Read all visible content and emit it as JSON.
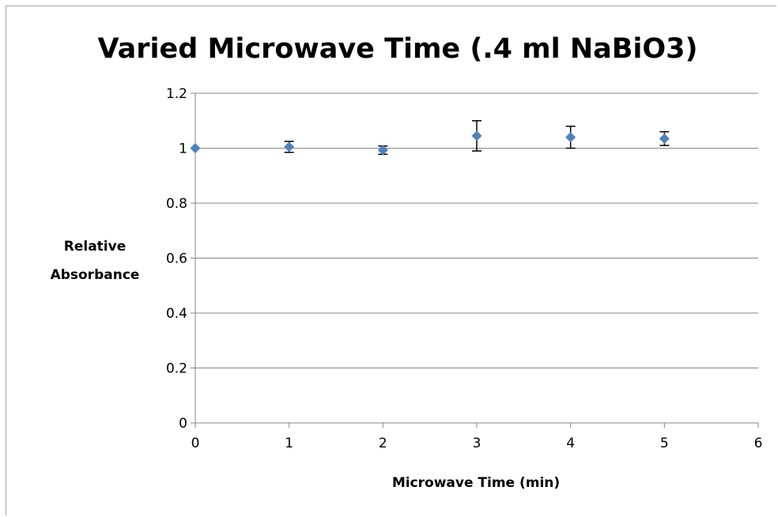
{
  "chart_data": {
    "type": "scatter",
    "title": "Varied Microwave Time (.4 ml NaBiO3)",
    "xlabel": "Microwave Time (min)",
    "ylabel_lines": [
      "Relative",
      "Absorbance"
    ],
    "xlim": [
      0,
      6
    ],
    "ylim": [
      0,
      1.2
    ],
    "x_ticks": [
      "0",
      "1",
      "2",
      "3",
      "4",
      "5",
      "6"
    ],
    "y_ticks": [
      "0",
      "0.2",
      "0.4",
      "0.6",
      "0.8",
      "1",
      "1.2"
    ],
    "grid": true,
    "legend": "none",
    "marker_color": "#4f81bd",
    "points": [
      {
        "x": 0,
        "y": 1.0,
        "err": 0
      },
      {
        "x": 1,
        "y": 1.005,
        "err": 0.02
      },
      {
        "x": 2,
        "y": 0.993,
        "err": 0.015
      },
      {
        "x": 3,
        "y": 1.045,
        "err": 0.055
      },
      {
        "x": 4,
        "y": 1.04,
        "err": 0.04
      },
      {
        "x": 5,
        "y": 1.035,
        "err": 0.025
      }
    ]
  }
}
